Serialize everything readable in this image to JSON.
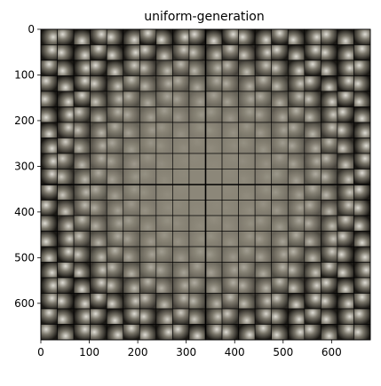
{
  "chart_data": {
    "type": "heatmap",
    "title": "uniform-generation",
    "xlabel": "",
    "ylabel": "",
    "xlim": [
      0,
      680
    ],
    "ylim": [
      680,
      0
    ],
    "grid": false,
    "x_ticks": [
      0,
      100,
      200,
      300,
      400,
      500,
      600
    ],
    "y_ticks": [
      0,
      100,
      200,
      300,
      400,
      500,
      600
    ],
    "tiles": {
      "rows": 20,
      "cols": 20,
      "tile_size": 34,
      "blocks_per_side": 2,
      "center_color": "#8c8779",
      "edge_dark": "#1a1814",
      "edge_light": "#e8e6df",
      "border_color": "#000000"
    }
  }
}
